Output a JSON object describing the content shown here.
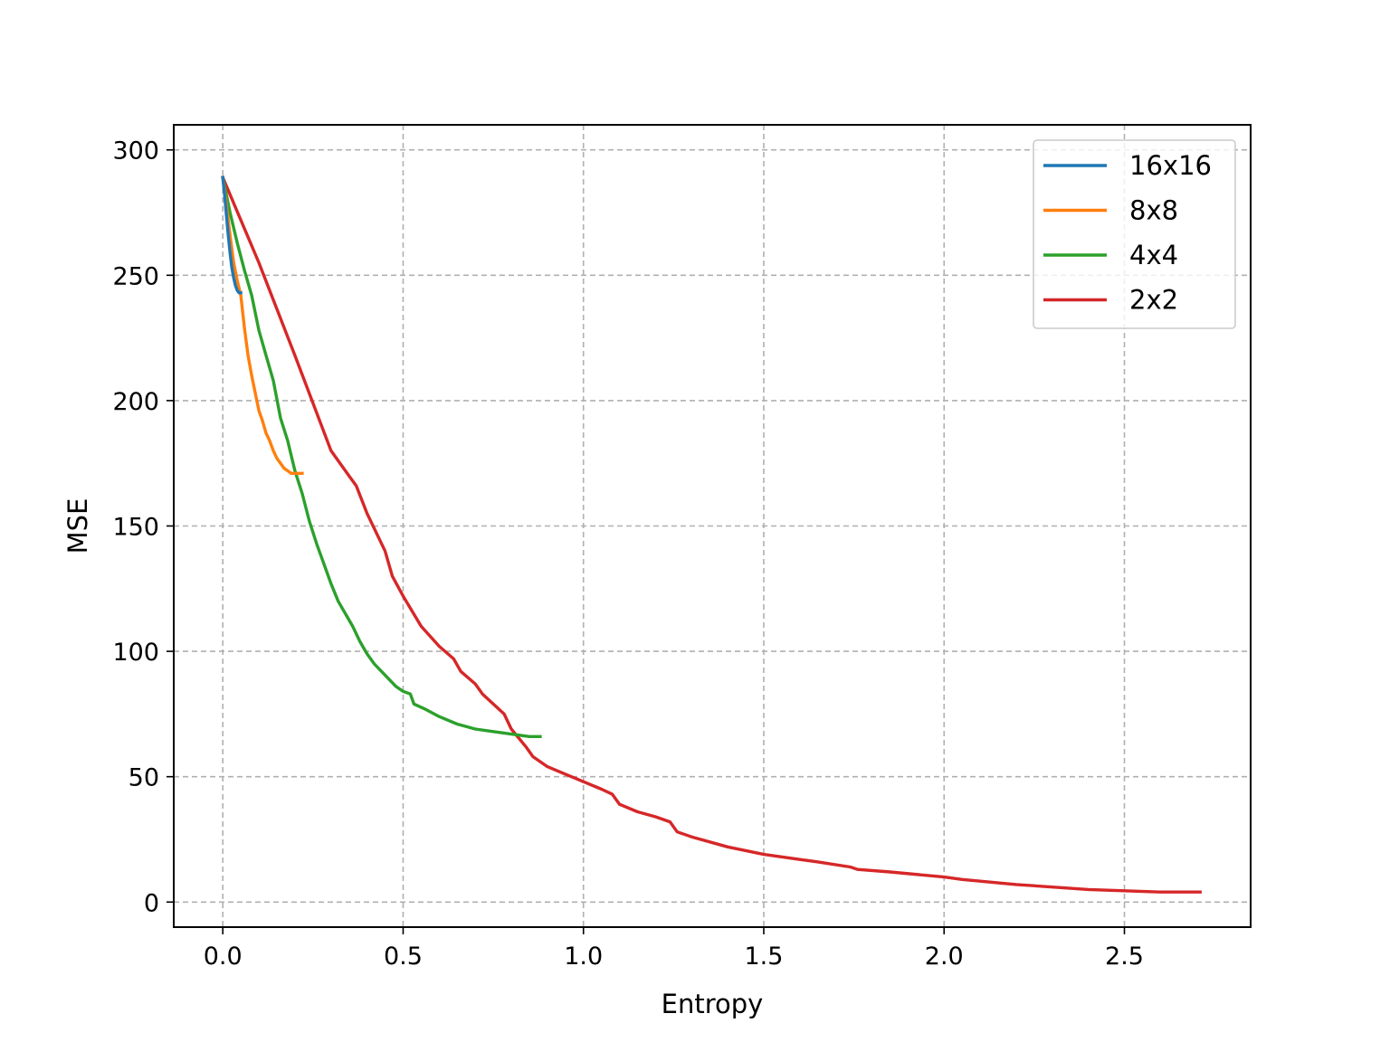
{
  "chart_data": {
    "type": "line",
    "xlabel": "Entropy",
    "ylabel": "MSE",
    "xlim": [
      -0.136,
      2.85
    ],
    "ylim": [
      -10,
      310
    ],
    "xticks": [
      {
        "value": 0.0,
        "label": "0.0"
      },
      {
        "value": 0.5,
        "label": "0.5"
      },
      {
        "value": 1.0,
        "label": "1.0"
      },
      {
        "value": 1.5,
        "label": "1.5"
      },
      {
        "value": 2.0,
        "label": "2.0"
      },
      {
        "value": 2.5,
        "label": "2.5"
      }
    ],
    "yticks": [
      {
        "value": 0,
        "label": "0"
      },
      {
        "value": 50,
        "label": "50"
      },
      {
        "value": 100,
        "label": "100"
      },
      {
        "value": 150,
        "label": "150"
      },
      {
        "value": 200,
        "label": "200"
      },
      {
        "value": 250,
        "label": "250"
      },
      {
        "value": 300,
        "label": "300"
      }
    ],
    "grid": true,
    "legend_position": "top-right",
    "series": [
      {
        "name": "16x16",
        "color": "#1f77b4",
        "x": [
          0.0,
          0.005,
          0.01,
          0.015,
          0.02,
          0.025,
          0.03,
          0.035,
          0.04,
          0.045,
          0.05
        ],
        "y": [
          289,
          282,
          274,
          266,
          259,
          253,
          249,
          246,
          244,
          243,
          243
        ]
      },
      {
        "name": "8x8",
        "color": "#ff7f0e",
        "x": [
          0.0,
          0.01,
          0.02,
          0.03,
          0.04,
          0.05,
          0.06,
          0.07,
          0.08,
          0.09,
          0.1,
          0.11,
          0.12,
          0.13,
          0.14,
          0.15,
          0.16,
          0.17,
          0.18,
          0.19,
          0.2,
          0.21,
          0.22
        ],
        "y": [
          289,
          278,
          266,
          255,
          248,
          242,
          229,
          218,
          210,
          203,
          196,
          192,
          187,
          184,
          180,
          177,
          175,
          173,
          172,
          171,
          171,
          171,
          171
        ]
      },
      {
        "name": "4x4",
        "color": "#2ca02c",
        "x": [
          0.0,
          0.02,
          0.04,
          0.06,
          0.08,
          0.1,
          0.12,
          0.14,
          0.16,
          0.18,
          0.2,
          0.22,
          0.24,
          0.26,
          0.28,
          0.3,
          0.32,
          0.34,
          0.36,
          0.38,
          0.4,
          0.42,
          0.44,
          0.46,
          0.48,
          0.5,
          0.52,
          0.53,
          0.56,
          0.6,
          0.65,
          0.7,
          0.75,
          0.8,
          0.85,
          0.88
        ],
        "y": [
          289,
          275,
          263,
          252,
          242,
          228,
          218,
          208,
          193,
          184,
          172,
          163,
          152,
          143,
          135,
          127,
          120,
          115,
          110,
          104,
          99,
          95,
          92,
          89,
          86,
          84,
          83,
          79,
          77,
          74,
          71,
          69,
          68,
          67,
          66,
          66
        ]
      },
      {
        "name": "2x2",
        "color": "#d62728",
        "x": [
          0.0,
          0.1,
          0.2,
          0.3,
          0.35,
          0.37,
          0.4,
          0.45,
          0.47,
          0.5,
          0.55,
          0.6,
          0.64,
          0.66,
          0.7,
          0.72,
          0.78,
          0.8,
          0.84,
          0.86,
          0.9,
          0.95,
          1.0,
          1.05,
          1.08,
          1.1,
          1.15,
          1.2,
          1.24,
          1.26,
          1.3,
          1.4,
          1.5,
          1.6,
          1.65,
          1.74,
          1.76,
          1.85,
          2.0,
          2.05,
          2.2,
          2.4,
          2.6,
          2.71
        ],
        "y": [
          289,
          255,
          218,
          180,
          170,
          166,
          155,
          140,
          130,
          122,
          110,
          102,
          97,
          92,
          87,
          83,
          75,
          69,
          62,
          58,
          54,
          51,
          48,
          45,
          43,
          39,
          36,
          34,
          32,
          28,
          26,
          22,
          19,
          17,
          16,
          14,
          13,
          12,
          10,
          9,
          7,
          5,
          4,
          4
        ]
      }
    ]
  }
}
